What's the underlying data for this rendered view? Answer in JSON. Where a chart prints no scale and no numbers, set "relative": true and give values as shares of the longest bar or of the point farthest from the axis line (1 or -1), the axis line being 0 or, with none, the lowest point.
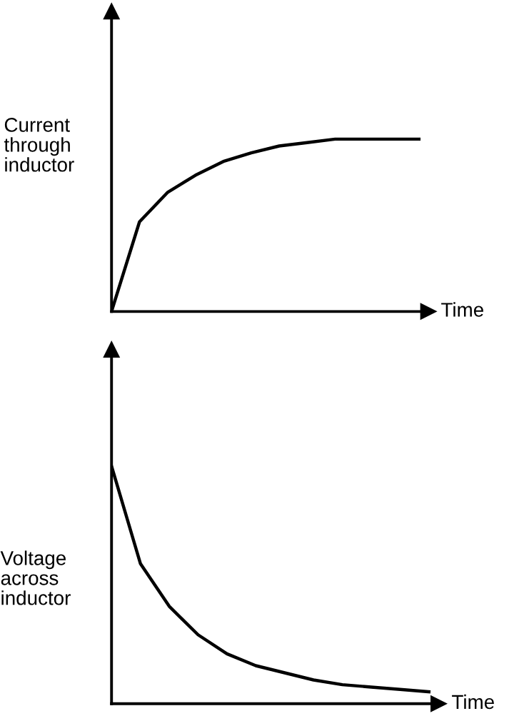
{
  "chart_data": [
    {
      "type": "line",
      "relative": true,
      "xlabel": "Time",
      "ylabel": "Current\nthrough\ninductor",
      "categories": [
        null,
        null,
        null,
        null,
        null,
        null,
        null,
        null,
        null,
        null,
        null,
        null
      ],
      "series": [
        {
          "color": "#000000",
          "values": [
            0,
            0.52,
            0.69,
            0.79,
            0.87,
            0.92,
            0.96,
            0.98,
            1,
            1,
            1,
            1
          ]
        }
      ],
      "tick_labels": false,
      "marker": "none",
      "line_style": "solid"
    },
    {
      "type": "line",
      "relative": true,
      "xlabel": "Time",
      "ylabel": "Voltage\nacross\ninductor",
      "categories": [
        null,
        null,
        null,
        null,
        null,
        null,
        null,
        null,
        null,
        null,
        null,
        null
      ],
      "series": [
        {
          "color": "#000000",
          "values": [
            1,
            0.59,
            0.41,
            0.29,
            0.21,
            0.16,
            0.13,
            0.1,
            0.08,
            0.07,
            0.06,
            0.05
          ]
        }
      ],
      "tick_labels": false,
      "marker": "none",
      "line_style": "solid"
    }
  ]
}
